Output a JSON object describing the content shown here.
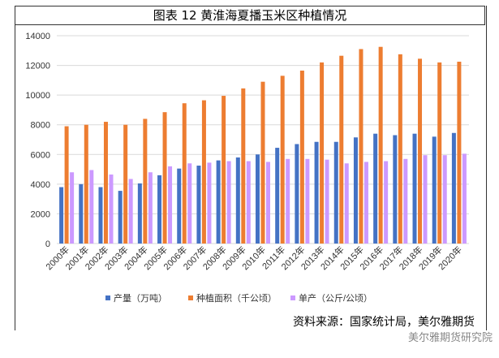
{
  "title": "图表 12  黄淮海夏播玉米区种植情况",
  "source": "资料来源：国家统计局，美尔雅期货",
  "watermark": "美尔雅期货研究院",
  "chart_data": {
    "type": "bar",
    "categories": [
      "2000年",
      "2001年",
      "2002年",
      "2003年",
      "2004年",
      "2005年",
      "2006年",
      "2007年",
      "2008年",
      "2009年",
      "2010年",
      "2011年",
      "2012年",
      "2013年",
      "2014年",
      "2015年",
      "2016年",
      "2017年",
      "2018年",
      "2019年",
      "2020年"
    ],
    "series": [
      {
        "name": "产量（万吨）",
        "color": "#4472C4",
        "values": [
          3800,
          4000,
          3800,
          3550,
          4050,
          4600,
          5050,
          5250,
          5600,
          5800,
          6000,
          6450,
          6700,
          6850,
          6850,
          7150,
          7400,
          7300,
          7400,
          7200,
          7450
        ]
      },
      {
        "name": "种植面积（千公顷）",
        "color": "#ED7D31",
        "values": [
          7900,
          8000,
          8200,
          8000,
          8400,
          8850,
          9450,
          9650,
          9950,
          10450,
          10900,
          11300,
          11650,
          12200,
          12650,
          13100,
          13250,
          12750,
          12450,
          12200,
          12250
        ]
      },
      {
        "name": "单产（公斤/公顷）",
        "color": "#CC99FF",
        "values": [
          4800,
          4950,
          4650,
          4350,
          4800,
          5200,
          5400,
          5450,
          5550,
          5550,
          5500,
          5700,
          5700,
          5650,
          5400,
          5500,
          5550,
          5700,
          5950,
          5950,
          6050
        ]
      }
    ],
    "ylim": [
      0,
      14000
    ],
    "yticks": [
      "0",
      "2000",
      "4000",
      "6000",
      "8000",
      "10000",
      "12000",
      "14000"
    ],
    "grid": true,
    "legend": "bottom"
  }
}
